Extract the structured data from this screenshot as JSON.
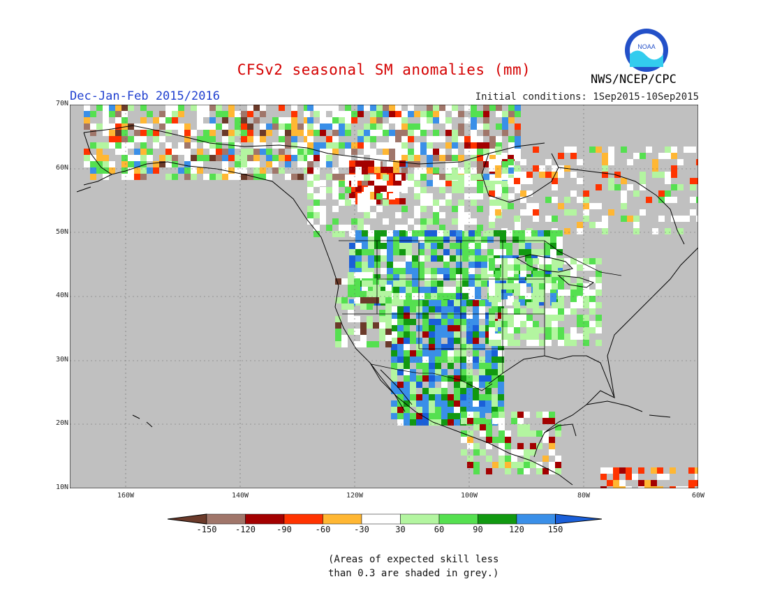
{
  "title": "CFSv2 seasonal SM anomalies (mm)",
  "period": "Dec-Jan-Feb 2015/2016",
  "initial_conditions": "Initial conditions: 1Sep2015-10Sep2015",
  "agency": "NWS/NCEP/CPC",
  "logo_text": "NOAA",
  "lat_labels": [
    "70N",
    "60N",
    "50N",
    "40N",
    "30N",
    "20N",
    "10N"
  ],
  "lon_labels": [
    "160W",
    "140W",
    "120W",
    "100W",
    "80W",
    "60W"
  ],
  "colorbar": {
    "ticks": [
      "-150",
      "-120",
      "-90",
      "-60",
      "-30",
      "30",
      "60",
      "90",
      "120",
      "150"
    ],
    "colors": [
      "#6b3a2a",
      "#a0766a",
      "#a30000",
      "#ff3300",
      "#ffb733",
      "#ffffff",
      "#b3f5a0",
      "#55e050",
      "#119911",
      "#3a8fe8",
      "#1a5fd9"
    ]
  },
  "note_line1": "(Areas of expected skill less",
  "note_line2": "than 0.3 are shaded in grey.)",
  "map_colors": {
    "ocean_grey": "#c0c0c0",
    "coast": "#000000"
  }
}
